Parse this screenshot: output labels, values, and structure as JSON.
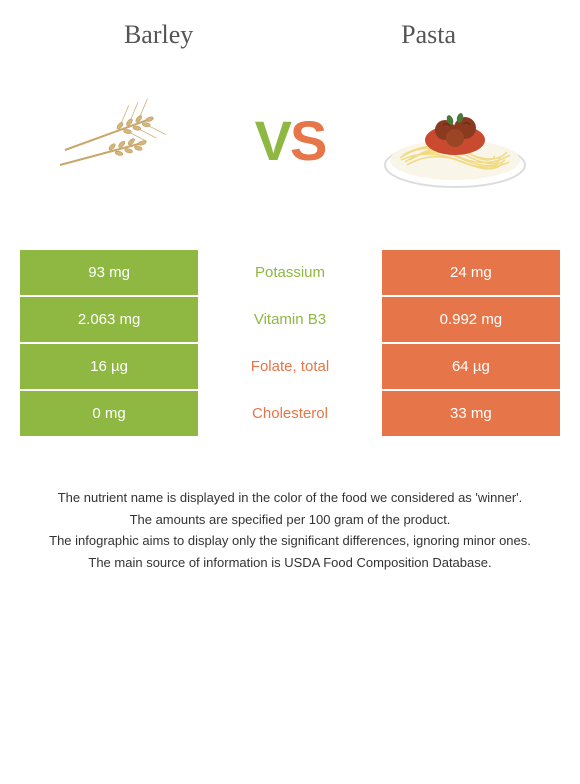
{
  "header": {
    "left_title": "Barley",
    "right_title": "Pasta"
  },
  "vs": {
    "v": "V",
    "s": "S"
  },
  "colors": {
    "left": "#8eb842",
    "right": "#e67649",
    "text": "#555555"
  },
  "table": {
    "rows": [
      {
        "left_value": "93 mg",
        "nutrient": "Potassium",
        "right_value": "24 mg",
        "winner": "left"
      },
      {
        "left_value": "2.063 mg",
        "nutrient": "Vitamin B3",
        "right_value": "0.992 mg",
        "winner": "left"
      },
      {
        "left_value": "16 µg",
        "nutrient": "Folate, total",
        "right_value": "64 µg",
        "winner": "right"
      },
      {
        "left_value": "0 mg",
        "nutrient": "Cholesterol",
        "right_value": "33 mg",
        "winner": "right"
      }
    ]
  },
  "footer": {
    "line1": "The nutrient name is displayed in the color of the food we considered as 'winner'.",
    "line2": "The amounts are specified per 100 gram of the product.",
    "line3": "The infographic aims to display only the significant differences, ignoring minor ones.",
    "line4": "The main source of information is USDA Food Composition Database."
  }
}
